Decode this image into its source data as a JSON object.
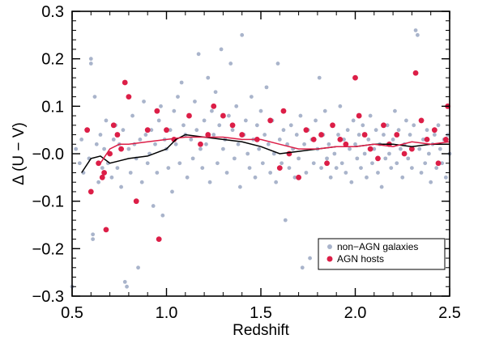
{
  "chart_data": {
    "type": "scatter",
    "xlabel": "Redshift",
    "ylabel": "Δ (U − V)",
    "xlim": [
      0.5,
      2.5
    ],
    "ylim": [
      -0.3,
      0.3
    ],
    "x_ticks": [
      0.5,
      1.0,
      1.5,
      2.0,
      2.5
    ],
    "x_tick_labels": [
      "0.5",
      "1.0",
      "1.5",
      "2.0",
      "2.5"
    ],
    "y_ticks": [
      -0.3,
      -0.2,
      -0.1,
      0.0,
      0.1,
      0.2,
      0.3
    ],
    "y_tick_labels": [
      "−0.3",
      "−0.2",
      "−0.1",
      "−0.0",
      "0.1",
      "0.2",
      "0.3"
    ],
    "grid": false,
    "legend_position": "bottom-right",
    "legend": [
      "non−AGN galaxies",
      "AGN hosts"
    ],
    "colors": {
      "non_agn": "#a9b4cb",
      "agn": "#dc1e47",
      "non_agn_line": "#000000",
      "agn_line": "#dc1e47"
    },
    "series": [
      {
        "name": "non−AGN galaxies",
        "kind": "scatter",
        "points": [
          [
            0.5,
            -0.28
          ],
          [
            0.52,
            0.01
          ],
          [
            0.54,
            -0.02
          ],
          [
            0.55,
            0.03
          ],
          [
            0.56,
            -0.04
          ],
          [
            0.58,
            0.05
          ],
          [
            0.59,
            -0.01
          ],
          [
            0.6,
            0.2
          ],
          [
            0.6,
            0.19
          ],
          [
            0.61,
            -0.17
          ],
          [
            0.61,
            -0.18
          ],
          [
            0.62,
            0.12
          ],
          [
            0.63,
            0.02
          ],
          [
            0.64,
            -0.06
          ],
          [
            0.65,
            0.04
          ],
          [
            0.66,
            -0.03
          ],
          [
            0.67,
            0.01
          ],
          [
            0.68,
            0.07
          ],
          [
            0.69,
            -0.02
          ],
          [
            0.7,
            0.0
          ],
          [
            0.71,
            -0.05
          ],
          [
            0.72,
            0.03
          ],
          [
            0.73,
            0.06
          ],
          [
            0.74,
            -0.03
          ],
          [
            0.75,
            0.02
          ],
          [
            0.76,
            -0.07
          ],
          [
            0.77,
            0.05
          ],
          [
            0.78,
            -0.27
          ],
          [
            0.79,
            -0.28
          ],
          [
            0.8,
            0.01
          ],
          [
            0.81,
            -0.04
          ],
          [
            0.82,
            0.08
          ],
          [
            0.83,
            0.02
          ],
          [
            0.84,
            -0.01
          ],
          [
            0.85,
            -0.24
          ],
          [
            0.86,
            0.03
          ],
          [
            0.87,
            -0.06
          ],
          [
            0.88,
            0.11
          ],
          [
            0.89,
            0.04
          ],
          [
            0.9,
            -0.02
          ],
          [
            0.91,
            0.0
          ],
          [
            0.92,
            0.05
          ],
          [
            0.93,
            -0.11
          ],
          [
            0.94,
            0.02
          ],
          [
            0.95,
            -0.04
          ],
          [
            0.96,
            0.07
          ],
          [
            0.97,
            0.1
          ],
          [
            0.98,
            -0.13
          ],
          [
            0.99,
            0.03
          ],
          [
            1.0,
            0.01
          ],
          [
            1.01,
            -0.03
          ],
          [
            1.02,
            0.05
          ],
          [
            1.03,
            -0.08
          ],
          [
            1.04,
            0.09
          ],
          [
            1.05,
            0.02
          ],
          [
            1.06,
            0.12
          ],
          [
            1.07,
            -0.02
          ],
          [
            1.08,
            0.15
          ],
          [
            1.09,
            0.06
          ],
          [
            1.1,
            0.04
          ],
          [
            1.11,
            -0.05
          ],
          [
            1.12,
            0.08
          ],
          [
            1.13,
            0.03
          ],
          [
            1.14,
            -0.01
          ],
          [
            1.15,
            0.11
          ],
          [
            1.16,
            0.05
          ],
          [
            1.17,
            0.21
          ],
          [
            1.18,
            0.01
          ],
          [
            1.19,
            -0.03
          ],
          [
            1.2,
            0.07
          ],
          [
            1.21,
            0.02
          ],
          [
            1.22,
            0.16
          ],
          [
            1.23,
            -0.06
          ],
          [
            1.24,
            0.09
          ],
          [
            1.25,
            0.04
          ],
          [
            1.26,
            0.13
          ],
          [
            1.27,
            -0.02
          ],
          [
            1.28,
            0.06
          ],
          [
            1.29,
            0.22
          ],
          [
            1.3,
            0.01
          ],
          [
            1.31,
            0.03
          ],
          [
            1.32,
            -0.04
          ],
          [
            1.33,
            0.08
          ],
          [
            1.34,
            0.19
          ],
          [
            1.35,
            0.05
          ],
          [
            1.36,
            -0.01
          ],
          [
            1.37,
            0.1
          ],
          [
            1.38,
            0.02
          ],
          [
            1.39,
            -0.07
          ],
          [
            1.4,
            0.25
          ],
          [
            1.41,
            0.04
          ],
          [
            1.42,
            0.07
          ],
          [
            1.43,
            0.0
          ],
          [
            1.44,
            -0.03
          ],
          [
            1.45,
            0.12
          ],
          [
            1.46,
            0.03
          ],
          [
            1.47,
            -0.05
          ],
          [
            1.48,
            0.06
          ],
          [
            1.49,
            0.01
          ],
          [
            1.5,
            0.09
          ],
          [
            1.51,
            -0.02
          ],
          [
            1.52,
            0.04
          ],
          [
            1.53,
            0.14
          ],
          [
            1.54,
            0.02
          ],
          [
            1.55,
            -0.04
          ],
          [
            1.56,
            0.07
          ],
          [
            1.57,
            0.0
          ],
          [
            1.58,
            -0.06
          ],
          [
            1.59,
            0.19
          ],
          [
            1.6,
            0.03
          ],
          [
            1.61,
            -0.02
          ],
          [
            1.62,
            0.05
          ],
          [
            1.63,
            -0.14
          ],
          [
            1.64,
            0.02
          ],
          [
            1.65,
            -0.03
          ],
          [
            1.66,
            0.06
          ],
          [
            1.67,
            0.01
          ],
          [
            1.68,
            -0.05
          ],
          [
            1.69,
            0.04
          ],
          [
            1.7,
            -0.01
          ],
          [
            1.71,
            0.08
          ],
          [
            1.72,
            -0.24
          ],
          [
            1.73,
            0.02
          ],
          [
            1.74,
            -0.04
          ],
          [
            1.75,
            0.05
          ],
          [
            1.76,
            -0.22
          ],
          [
            1.77,
            0.03
          ],
          [
            1.78,
            -0.02
          ],
          [
            1.79,
            0.07
          ],
          [
            1.8,
            0.01
          ],
          [
            1.81,
            0.16
          ],
          [
            1.82,
            -0.03
          ],
          [
            1.83,
            0.04
          ],
          [
            1.84,
            0.09
          ],
          [
            1.85,
            -0.01
          ],
          [
            1.86,
            0.02
          ],
          [
            1.87,
            -0.05
          ],
          [
            1.88,
            0.06
          ],
          [
            1.89,
            0.0
          ],
          [
            1.9,
            -0.03
          ],
          [
            1.91,
            0.04
          ],
          [
            1.92,
            0.1
          ],
          [
            1.93,
            -0.02
          ],
          [
            1.94,
            0.03
          ],
          [
            1.95,
            -0.04
          ],
          [
            1.96,
            0.05
          ],
          [
            1.97,
            0.01
          ],
          [
            1.98,
            -0.06
          ],
          [
            1.99,
            0.07
          ],
          [
            2.0,
            0.02
          ],
          [
            2.01,
            -0.01
          ],
          [
            2.02,
            0.04
          ],
          [
            2.03,
            -0.03
          ],
          [
            2.04,
            0.06
          ],
          [
            2.05,
            0.0
          ],
          [
            2.06,
            -0.05
          ],
          [
            2.07,
            0.03
          ],
          [
            2.08,
            0.08
          ],
          [
            2.09,
            -0.02
          ],
          [
            2.1,
            0.01
          ],
          [
            2.11,
            0.05
          ],
          [
            2.12,
            -0.04
          ],
          [
            2.13,
            0.02
          ],
          [
            2.14,
            -0.07
          ],
          [
            2.15,
            0.04
          ],
          [
            2.16,
            -0.01
          ],
          [
            2.17,
            0.06
          ],
          [
            2.18,
            0.0
          ],
          [
            2.19,
            -0.03
          ],
          [
            2.2,
            0.03
          ],
          [
            2.21,
            0.09
          ],
          [
            2.22,
            -0.02
          ],
          [
            2.23,
            0.05
          ],
          [
            2.24,
            0.01
          ],
          [
            2.25,
            -0.05
          ],
          [
            2.26,
            0.02
          ],
          [
            2.27,
            0.07
          ],
          [
            2.28,
            -0.01
          ],
          [
            2.29,
            0.04
          ],
          [
            2.3,
            -0.03
          ],
          [
            2.31,
            0.06
          ],
          [
            2.32,
            0.26
          ],
          [
            2.33,
            0.25
          ],
          [
            2.34,
            0.01
          ],
          [
            2.35,
            -0.04
          ],
          [
            2.36,
            0.03
          ],
          [
            2.37,
            -0.02
          ],
          [
            2.38,
            0.05
          ],
          [
            2.39,
            0.0
          ],
          [
            2.4,
            -0.06
          ],
          [
            2.41,
            0.02
          ],
          [
            2.42,
            0.04
          ],
          [
            2.43,
            -0.03
          ],
          [
            2.44,
            0.06
          ],
          [
            2.45,
            0.01
          ],
          [
            2.46,
            -0.02
          ],
          [
            2.47,
            0.03
          ],
          [
            2.48,
            -0.05
          ],
          [
            2.49,
            0.04
          ],
          [
            2.5,
            0.0
          ]
        ]
      },
      {
        "name": "AGN hosts",
        "kind": "scatter",
        "points": [
          [
            0.58,
            0.05
          ],
          [
            0.6,
            -0.08
          ],
          [
            0.64,
            -0.02
          ],
          [
            0.66,
            -0.05
          ],
          [
            0.67,
            -0.04
          ],
          [
            0.68,
            -0.16
          ],
          [
            0.7,
            0.0
          ],
          [
            0.72,
            0.06
          ],
          [
            0.74,
            0.04
          ],
          [
            0.76,
            0.01
          ],
          [
            0.78,
            0.15
          ],
          [
            0.8,
            0.12
          ],
          [
            0.84,
            -0.1
          ],
          [
            0.9,
            0.05
          ],
          [
            0.95,
            0.09
          ],
          [
            0.96,
            -0.18
          ],
          [
            1.0,
            0.05
          ],
          [
            1.04,
            0.03
          ],
          [
            1.12,
            0.08
          ],
          [
            1.18,
            0.02
          ],
          [
            1.22,
            0.04
          ],
          [
            1.25,
            0.1
          ],
          [
            1.3,
            0.08
          ],
          [
            1.35,
            0.06
          ],
          [
            1.4,
            0.04
          ],
          [
            1.48,
            0.03
          ],
          [
            1.55,
            0.07
          ],
          [
            1.6,
            -0.03
          ],
          [
            1.62,
            0.09
          ],
          [
            1.65,
            0.0
          ],
          [
            1.7,
            -0.05
          ],
          [
            1.74,
            0.05
          ],
          [
            1.78,
            0.03
          ],
          [
            1.82,
            0.04
          ],
          [
            1.85,
            -0.02
          ],
          [
            1.88,
            0.06
          ],
          [
            1.92,
            0.03
          ],
          [
            1.95,
            0.02
          ],
          [
            2.0,
            0.16
          ],
          [
            2.02,
            0.08
          ],
          [
            2.05,
            0.04
          ],
          [
            2.08,
            0.01
          ],
          [
            2.12,
            -0.01
          ],
          [
            2.15,
            0.06
          ],
          [
            2.18,
            0.02
          ],
          [
            2.22,
            0.04
          ],
          [
            2.26,
            0.0
          ],
          [
            2.3,
            0.01
          ],
          [
            2.32,
            0.17
          ],
          [
            2.35,
            0.07
          ],
          [
            2.38,
            0.03
          ],
          [
            2.42,
            0.05
          ],
          [
            2.44,
            -0.02
          ],
          [
            2.48,
            0.03
          ],
          [
            2.49,
            0.1
          ]
        ]
      },
      {
        "name": "non−AGN galaxies",
        "kind": "line",
        "points": [
          [
            0.55,
            -0.04
          ],
          [
            0.6,
            -0.01
          ],
          [
            0.65,
            -0.005
          ],
          [
            0.7,
            -0.02
          ],
          [
            0.75,
            -0.015
          ],
          [
            0.8,
            -0.01
          ],
          [
            0.9,
            -0.005
          ],
          [
            1.0,
            0.01
          ],
          [
            1.05,
            0.03
          ],
          [
            1.1,
            0.04
          ],
          [
            1.2,
            0.035
          ],
          [
            1.3,
            0.03
          ],
          [
            1.4,
            0.025
          ],
          [
            1.5,
            0.015
          ],
          [
            1.6,
            0.0
          ],
          [
            1.7,
            0.005
          ],
          [
            1.8,
            0.01
          ],
          [
            1.9,
            0.015
          ],
          [
            2.0,
            0.015
          ],
          [
            2.1,
            0.02
          ],
          [
            2.2,
            0.02
          ],
          [
            2.3,
            0.015
          ],
          [
            2.4,
            0.02
          ],
          [
            2.5,
            0.02
          ]
        ]
      },
      {
        "name": "AGN hosts",
        "kind": "line",
        "points": [
          [
            0.65,
            -0.02
          ],
          [
            0.7,
            0.01
          ],
          [
            0.75,
            0.02
          ],
          [
            0.8,
            0.02
          ],
          [
            0.9,
            0.025
          ],
          [
            1.0,
            0.03
          ],
          [
            1.1,
            0.035
          ],
          [
            1.2,
            0.035
          ],
          [
            1.3,
            0.035
          ],
          [
            1.4,
            0.03
          ],
          [
            1.5,
            0.03
          ],
          [
            1.6,
            0.02
          ],
          [
            1.7,
            0.01
          ],
          [
            1.8,
            0.01
          ],
          [
            1.9,
            0.015
          ],
          [
            2.0,
            0.015
          ],
          [
            2.1,
            0.02
          ],
          [
            2.2,
            0.015
          ],
          [
            2.3,
            0.025
          ],
          [
            2.4,
            0.02
          ],
          [
            2.5,
            0.025
          ]
        ]
      }
    ]
  }
}
